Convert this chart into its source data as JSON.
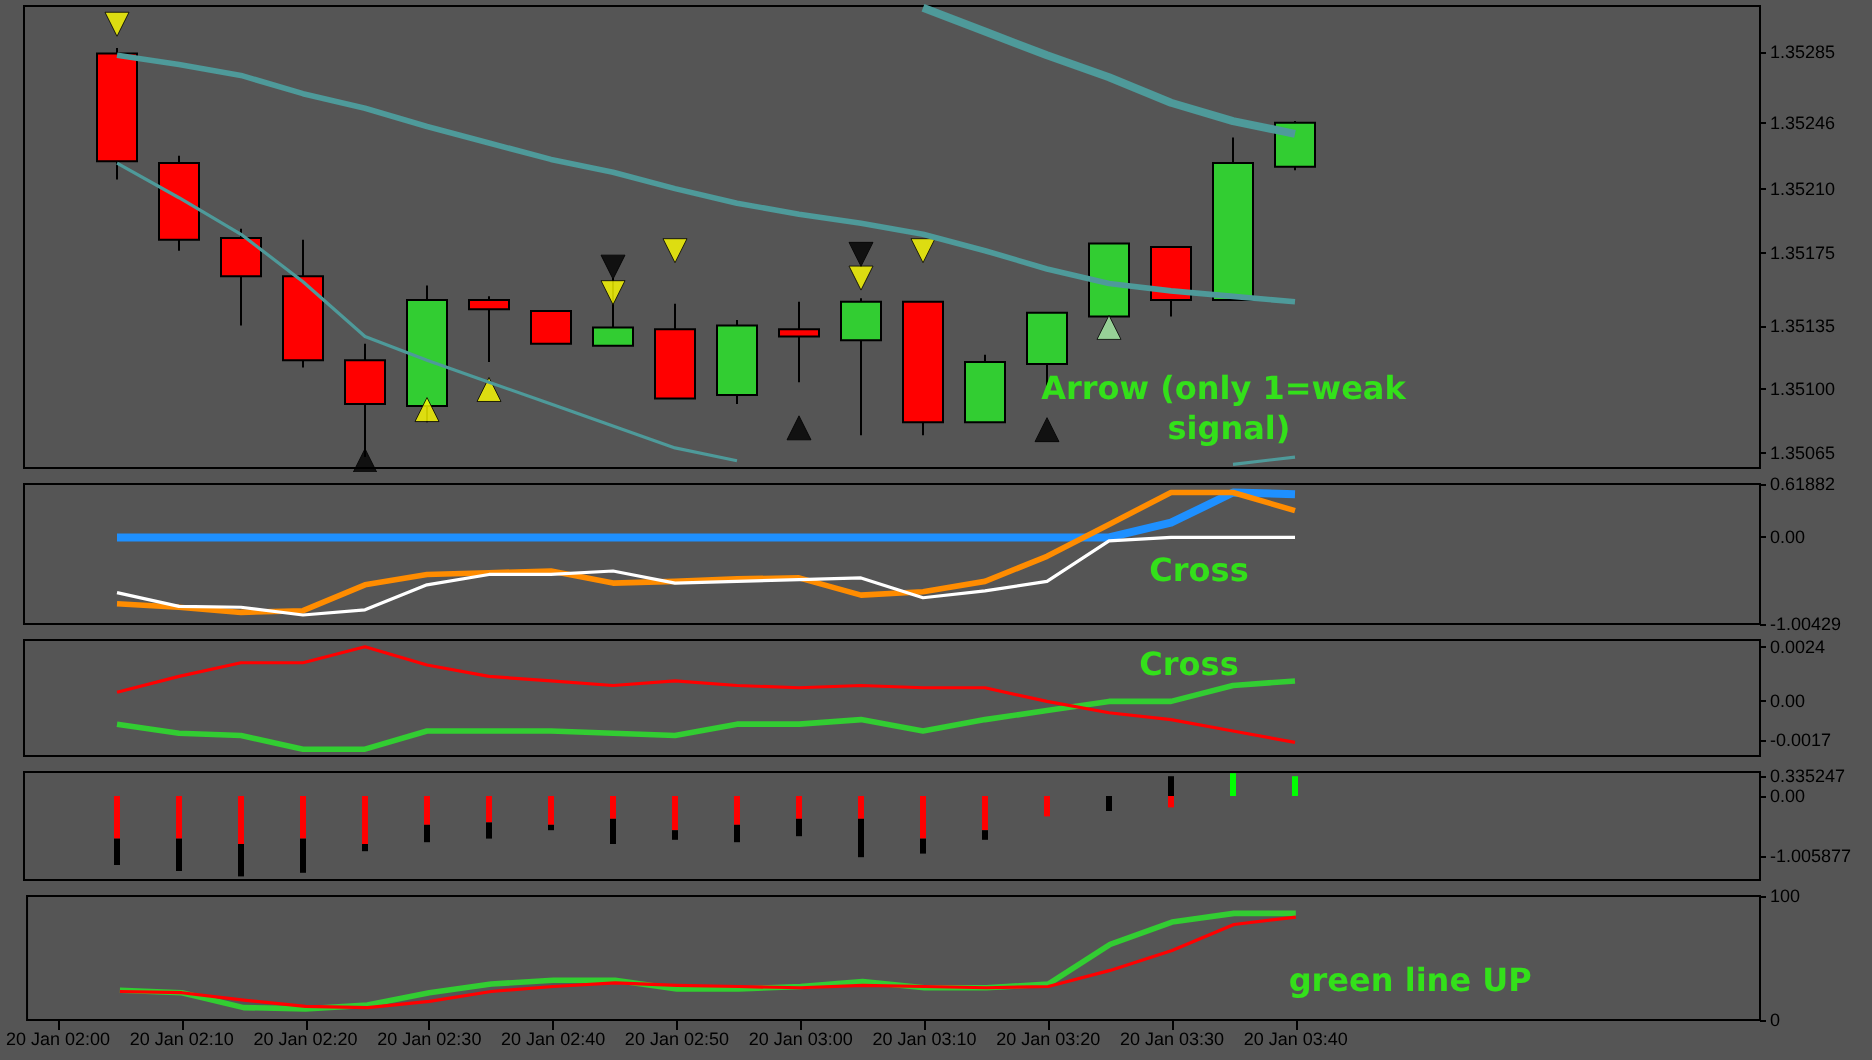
{
  "chart_data": [
    {
      "type": "candlestick",
      "tick_labels": "y",
      "categories": [
        null,
        null,
        null,
        null,
        null,
        null,
        null,
        null,
        null,
        null,
        null,
        null,
        null,
        null,
        null,
        null,
        null,
        null,
        null,
        null,
        null,
        null,
        null,
        null,
        null,
        null,
        null,
        null
      ],
      "ohlc": [
        null,
        [
          1.35284,
          1.35287,
          1.35215,
          1.35225
        ],
        [
          1.35224,
          1.35228,
          1.35176,
          1.35182
        ],
        [
          1.35183,
          1.35188,
          1.35135,
          1.35162
        ],
        [
          1.35162,
          1.35182,
          1.35112,
          1.35116
        ],
        [
          1.35116,
          1.35125,
          1.35063,
          1.35092
        ],
        [
          1.35091,
          1.35157,
          1.35082,
          1.35149
        ],
        [
          1.35149,
          1.35151,
          1.35115,
          1.35144
        ],
        [
          1.35143,
          1.35143,
          1.35125,
          1.35125
        ],
        [
          1.35124,
          1.35161,
          1.35124,
          1.35134
        ],
        [
          1.35133,
          1.35147,
          1.35095,
          1.35095
        ],
        [
          1.35097,
          1.35138,
          1.35092,
          1.35135
        ],
        [
          1.35133,
          1.35148,
          1.35104,
          1.35129
        ],
        [
          1.35127,
          1.3515,
          1.35075,
          1.35148
        ],
        [
          1.35148,
          1.35148,
          1.35075,
          1.35082
        ],
        [
          1.35082,
          1.35119,
          1.35082,
          1.35115
        ],
        [
          1.35114,
          1.35142,
          1.35102,
          1.35142
        ],
        [
          1.3514,
          1.3518,
          1.3514,
          1.3518
        ],
        [
          1.35178,
          1.35178,
          1.3514,
          1.35149
        ],
        [
          1.35149,
          1.35238,
          1.35149,
          1.35224
        ],
        [
          1.35222,
          1.35247,
          1.3522,
          1.35246
        ],
        null,
        null,
        null,
        null,
        null,
        null,
        null
      ],
      "colors": [
        null,
        "#ff0000",
        "#ff0000",
        "#ff0000",
        "#ff0000",
        "#ff0000",
        "#32cd32",
        "#ff0000",
        "#ff0000",
        "#32cd32",
        "#ff0000",
        "#32cd32",
        "#ff0000",
        "#32cd32",
        "#ff0000",
        "#32cd32",
        "#32cd32",
        "#32cd32",
        "#ff0000",
        "#32cd32",
        "#32cd32",
        null,
        null,
        null,
        null,
        null,
        null,
        null
      ],
      "series": [
        {
          "type": "line",
          "color": "#4e9a9a",
          "values": [
            null,
            null,
            null,
            null,
            null,
            null,
            null,
            null,
            null,
            null,
            null,
            null,
            null,
            null,
            1.35309,
            1.35296,
            1.35283,
            1.35271,
            1.35257,
            1.35247,
            1.3524,
            null,
            null,
            null,
            null,
            null,
            null,
            null
          ]
        },
        {
          "type": "line",
          "color": "#4e9a9a",
          "values": [
            null,
            1.35283,
            1.35278,
            1.35272,
            1.35262,
            1.35254,
            1.35244,
            1.35235,
            1.35226,
            1.35219,
            1.3521,
            1.35202,
            1.35196,
            1.35191,
            1.35185,
            1.35176,
            1.35166,
            1.35158,
            1.35154,
            1.35151,
            1.35148,
            null,
            null,
            null,
            null,
            null,
            null,
            null
          ]
        },
        {
          "type": "line",
          "color": "#4e9a9a",
          "values": [
            null,
            1.35224,
            1.35205,
            1.35185,
            1.35159,
            1.35129,
            1.35116,
            1.35104,
            1.35092,
            1.3508,
            1.35068,
            1.35061,
            null,
            null,
            null,
            null,
            null,
            null,
            null,
            1.35059,
            1.35063,
            null,
            null,
            null,
            null,
            null,
            null,
            null
          ]
        },
        {
          "type": "scatter",
          "marker": "triangle",
          "color": "#ffff00",
          "values": [
            null,
            1.353,
            null,
            null,
            null,
            null,
            null,
            null,
            null,
            1.35153,
            1.35176,
            null,
            null,
            1.35161,
            1.35176,
            null,
            null,
            null,
            null,
            null,
            null,
            null,
            null,
            null,
            null,
            null,
            null,
            null
          ]
        },
        {
          "type": "scatter",
          "marker": "triangle",
          "color": "#000000",
          "values": [
            null,
            null,
            null,
            null,
            null,
            null,
            null,
            null,
            null,
            1.35167,
            null,
            null,
            null,
            1.35174,
            null,
            null,
            null,
            null,
            null,
            null,
            null,
            null,
            null,
            null,
            null,
            null,
            null,
            null
          ]
        },
        {
          "type": "scatter",
          "marker": "triangle",
          "color": "#ffff00",
          "values": [
            null,
            null,
            null,
            null,
            null,
            null,
            1.35089,
            1.351,
            null,
            null,
            null,
            null,
            null,
            null,
            null,
            null,
            null,
            null,
            null,
            null,
            null,
            null,
            null,
            null,
            null,
            null,
            null,
            null
          ]
        },
        {
          "type": "scatter",
          "marker": "triangle",
          "color": "#000000",
          "values": [
            null,
            null,
            null,
            null,
            null,
            1.35061,
            null,
            null,
            null,
            null,
            null,
            null,
            1.35079,
            null,
            null,
            null,
            1.35078,
            null,
            null,
            null,
            null,
            null,
            null,
            null,
            null,
            null,
            null,
            null
          ]
        },
        {
          "type": "scatter",
          "marker": "triangle",
          "color": "#a8f0a8",
          "values": [
            null,
            null,
            null,
            null,
            null,
            null,
            null,
            null,
            null,
            null,
            null,
            null,
            null,
            null,
            null,
            null,
            null,
            1.35134,
            null,
            null,
            null,
            null,
            null,
            null,
            null,
            null,
            null,
            null
          ]
        }
      ],
      "ylim": [
        1.35057,
        1.3531
      ],
      "yticks": [
        1.35285,
        1.35246,
        {
          "value": 1.3521,
          "label": "1.35210"
        },
        1.35175,
        1.35135,
        {
          "value": 1.351,
          "label": "1.35100"
        },
        1.35065
      ],
      "annotations": [
        "Arrow (only 1=weak signal)"
      ]
    },
    {
      "type": "line",
      "tick_labels": "y",
      "categories": [
        null,
        null,
        null,
        null,
        null,
        null,
        null,
        null,
        null,
        null,
        null,
        null,
        null,
        null,
        null,
        null,
        null,
        null,
        null,
        null,
        null,
        null,
        null,
        null,
        null,
        null,
        null,
        null
      ],
      "series": [
        {
          "color": "#1e90ff",
          "values": [
            null,
            0,
            0,
            0,
            0,
            0,
            0,
            0,
            0,
            0,
            0,
            0,
            0,
            0,
            0,
            0,
            0,
            0,
            0.17,
            0.52,
            0.5,
            null,
            null,
            null,
            null,
            null,
            null,
            null
          ]
        },
        {
          "color": "#ff8c00",
          "values": [
            null,
            -0.77,
            -0.81,
            -0.87,
            -0.85,
            -0.55,
            -0.43,
            -0.41,
            -0.39,
            -0.53,
            -0.51,
            -0.48,
            -0.47,
            -0.67,
            -0.63,
            -0.51,
            -0.22,
            0.15,
            0.52,
            0.52,
            0.31,
            null,
            null,
            null,
            null,
            null,
            null,
            null
          ]
        },
        {
          "color": "#ffffff",
          "values": [
            null,
            -0.64,
            -0.8,
            -0.81,
            -0.9,
            -0.84,
            -0.55,
            -0.43,
            -0.43,
            -0.39,
            -0.53,
            -0.51,
            -0.49,
            -0.47,
            -0.7,
            -0.62,
            -0.51,
            -0.04,
            0,
            0,
            0,
            null,
            null,
            null,
            null,
            null,
            null,
            null
          ]
        }
      ],
      "ylim": [
        -1.00429,
        0.61882
      ],
      "yticks": [
        0.61882,
        {
          "value": 0,
          "label": "0.00"
        },
        -1.00429
      ],
      "annotations": [
        "Cross"
      ]
    },
    {
      "type": "line",
      "tick_labels": "y",
      "categories": [
        null,
        null,
        null,
        null,
        null,
        null,
        null,
        null,
        null,
        null,
        null,
        null,
        null,
        null,
        null,
        null,
        null,
        null,
        null,
        null,
        null,
        null,
        null,
        null,
        null,
        null,
        null,
        null
      ],
      "series": [
        {
          "color": "#32cd32",
          "values": [
            null,
            -0.001,
            -0.0014,
            -0.0015,
            -0.0021,
            -0.0021,
            -0.0013,
            -0.0013,
            -0.0013,
            -0.0014,
            -0.0015,
            -0.001,
            -0.001,
            -0.0008,
            -0.0013,
            -0.0008,
            -0.0004,
            0.0,
            0.0,
            0.0007,
            0.0009,
            null,
            null,
            null,
            null,
            null,
            null,
            null
          ]
        },
        {
          "color": "#ff0000",
          "values": [
            null,
            0.0004,
            0.0011,
            0.0017,
            0.0017,
            0.0024,
            0.0016,
            0.0011,
            0.0009,
            0.0007,
            0.0009,
            0.0007,
            0.0006,
            0.0007,
            0.0006,
            0.0006,
            0.0,
            -0.0005,
            -0.0008,
            -0.0013,
            -0.0018,
            null,
            null,
            null,
            null,
            null,
            null,
            null
          ]
        }
      ],
      "ylim": [
        -0.0024,
        0.0027
      ],
      "yticks": [
        0.0024,
        {
          "value": 0,
          "label": "0.00"
        },
        -0.0017
      ],
      "annotations": [
        "Cross"
      ]
    },
    {
      "type": "bar",
      "tick_labels": "y",
      "stacked": true,
      "categories": [
        null,
        null,
        null,
        null,
        null,
        null,
        null,
        null,
        null,
        null,
        null,
        null,
        null,
        null,
        null,
        null,
        null,
        null,
        null,
        null,
        null,
        null,
        null,
        null,
        null,
        null,
        null,
        null
      ],
      "series": [
        {
          "color": "#ff0000",
          "values": [
            null,
            -0.71,
            -0.71,
            -0.8,
            -0.71,
            -0.8,
            -0.48,
            -0.44,
            -0.48,
            -0.38,
            -0.57,
            -0.48,
            -0.38,
            -0.38,
            -0.71,
            -0.57,
            -0.34,
            null,
            -0.19,
            null,
            null,
            null,
            null,
            null,
            null,
            null,
            null,
            null
          ]
        },
        {
          "color": "#000000",
          "values": [
            null,
            -0.44,
            -0.54,
            -0.54,
            -0.57,
            -0.12,
            -0.29,
            -0.27,
            -0.09,
            -0.42,
            -0.16,
            -0.29,
            -0.29,
            -0.64,
            -0.25,
            -0.16,
            null,
            -0.25,
            0.33,
            null,
            null,
            null,
            null,
            null,
            null,
            null,
            null,
            null
          ]
        },
        {
          "color": "#00ff00",
          "values": [
            null,
            null,
            null,
            null,
            null,
            null,
            null,
            null,
            null,
            null,
            null,
            null,
            null,
            null,
            null,
            null,
            null,
            null,
            null,
            0.38,
            0.33,
            null,
            null,
            null,
            null,
            null,
            null,
            null
          ]
        }
      ],
      "ylim": [
        -1.4,
        0.4
      ],
      "yticks": [
        0.335247,
        {
          "value": 0,
          "label": "0.00"
        },
        -1.005877
      ]
    },
    {
      "type": "line",
      "categories": [
        "20 Jan 02:00",
        null,
        "20 Jan 02:10",
        null,
        "20 Jan 02:20",
        null,
        "20 Jan 02:30",
        null,
        "20 Jan 02:40",
        null,
        "20 Jan 02:50",
        null,
        "20 Jan 03:00",
        null,
        "20 Jan 03:10",
        null,
        "20 Jan 03:20",
        null,
        "20 Jan 03:30",
        null,
        "20 Jan 03:40",
        null,
        null,
        null,
        null,
        null,
        null,
        null
      ],
      "series": [
        {
          "color": "#32cd32",
          "values": [
            null,
            24,
            22,
            10,
            9,
            12,
            22,
            29,
            32,
            32,
            25,
            25,
            27,
            31,
            26,
            26,
            29,
            61,
            79,
            86,
            86,
            null,
            null,
            null,
            null,
            null,
            null,
            null
          ]
        },
        {
          "color": "#ff0000",
          "values": [
            null,
            23,
            22,
            16,
            11,
            10,
            15,
            23,
            27,
            30,
            28,
            27,
            26,
            28,
            27,
            26,
            27,
            40,
            56,
            77,
            83,
            null,
            null,
            null,
            null,
            null,
            null,
            null
          ]
        }
      ],
      "ylim": [
        0,
        100
      ],
      "yticks": [
        100,
        0
      ],
      "annotations": [
        "green line UP"
      ]
    }
  ]
}
